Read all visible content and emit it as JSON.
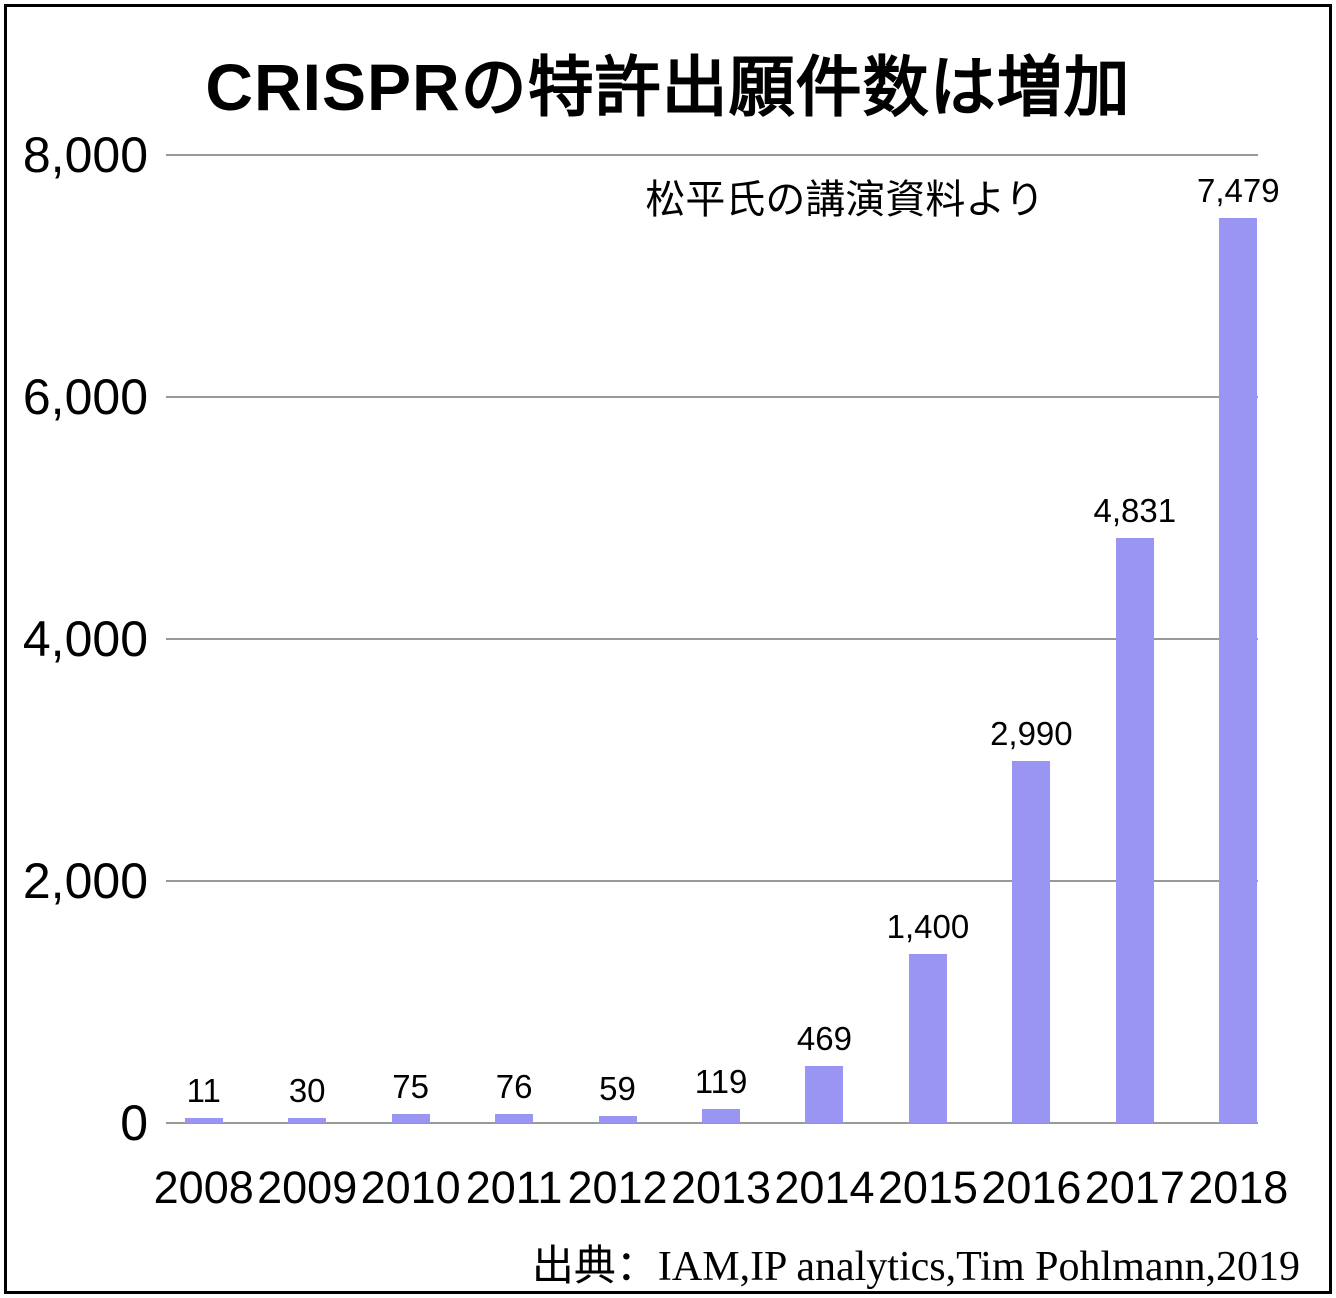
{
  "title": "CRISPRの特許出願件数は増加",
  "annotation": "松平氏の講演資料より",
  "source": "出典：IAM,IP analytics,Tim Pohlmann,2019",
  "colors": {
    "bar": "#9A94F2",
    "gridline": "#999999",
    "text": "#000000",
    "background": "#ffffff",
    "frame_border": "#000000"
  },
  "chart_data": {
    "type": "bar",
    "title": "CRISPRの特許出願件数は増加",
    "subtitle_annotation": "松平氏の講演資料より",
    "source": "出典：IAM,IP analytics,Tim Pohlmann,2019",
    "categories": [
      "2008",
      "2009",
      "2010",
      "2011",
      "2012",
      "2013",
      "2014",
      "2015",
      "2016",
      "2017",
      "2018"
    ],
    "values": [
      11,
      30,
      75,
      76,
      59,
      119,
      469,
      1400,
      2990,
      4831,
      7479
    ],
    "data_labels": [
      "11",
      "30",
      "75",
      "76",
      "59",
      "119",
      "469",
      "1,400",
      "2,990",
      "4,831",
      "7,479"
    ],
    "xlabel": "",
    "ylabel": "",
    "ylim": [
      0,
      8000
    ],
    "yticks": [
      0,
      2000,
      4000,
      6000,
      8000
    ],
    "ytick_labels": [
      "0",
      "2,000",
      "4,000",
      "6,000",
      "8,000"
    ],
    "grid": "horizontal",
    "legend": "none",
    "bar_color": "#9A94F2"
  }
}
